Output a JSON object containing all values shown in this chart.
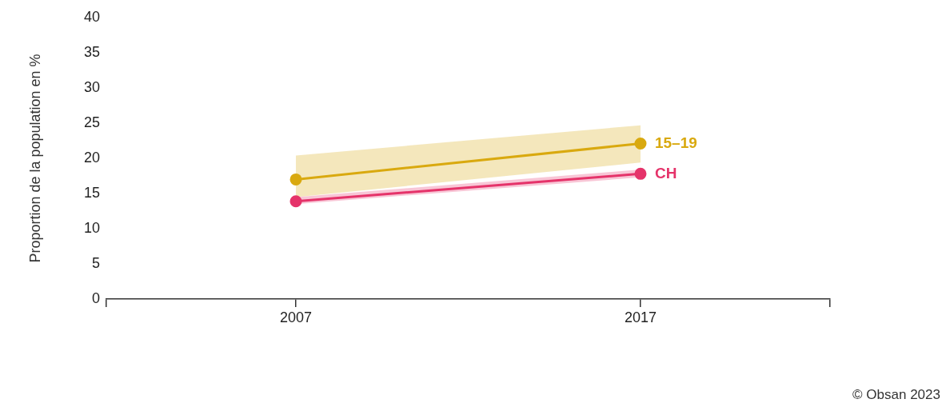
{
  "chart_data": {
    "type": "line",
    "ylabel": "Proportion de la population en %",
    "x": [
      2007,
      2017
    ],
    "series": [
      {
        "name": "15–19",
        "color": "#d9a90f",
        "values": [
          17.0,
          22.1
        ],
        "lower": [
          14.5,
          19.4
        ],
        "upper": [
          20.4,
          24.7
        ]
      },
      {
        "name": "CH",
        "color": "#e5336a",
        "values": [
          13.9,
          17.8
        ],
        "lower": [
          13.5,
          17.3
        ],
        "upper": [
          14.5,
          18.4
        ]
      }
    ],
    "xlim": [
      2001.5,
      2022.5
    ],
    "xticks": [
      {
        "value": 2001.5,
        "label": null
      },
      2007,
      2017,
      {
        "value": 2022.5,
        "label": null
      }
    ],
    "ylim": [
      0,
      40
    ],
    "yticks": [
      0,
      5,
      10,
      15,
      20,
      25,
      30,
      35,
      40
    ],
    "grid": false,
    "legend": false,
    "marker": "circle",
    "line_style": "solid",
    "annotations": [
      "© Obsan 2023"
    ]
  }
}
